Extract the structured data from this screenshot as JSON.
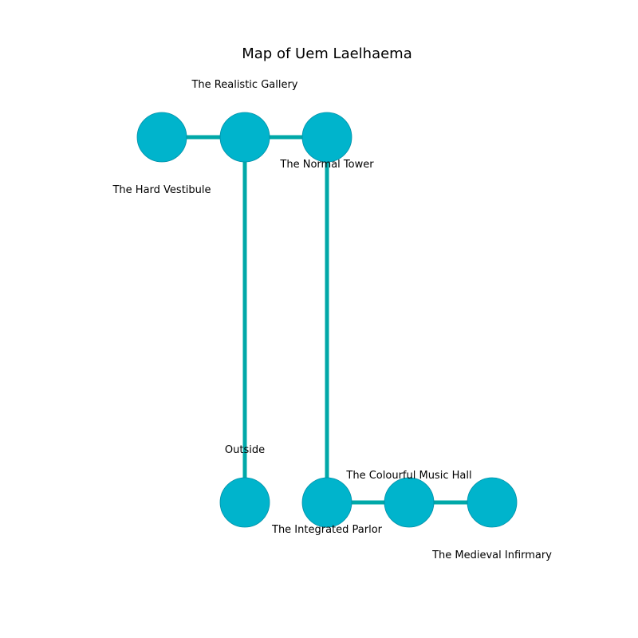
{
  "map": {
    "title": "Map of Uem Laelhaema",
    "colors": {
      "edge": "#00a8a8",
      "node_fill": "#00b4cc",
      "node_stroke": "#0090a8"
    },
    "rooms": [
      {
        "id": "hard-vestibule",
        "label": "The Hard Vestibule",
        "col": 0,
        "row": 0,
        "label_side": "below"
      },
      {
        "id": "realistic-gallery",
        "label": "The Realistic Gallery",
        "col": 1,
        "row": 0,
        "label_side": "above"
      },
      {
        "id": "normal-tower",
        "label": "The Normal Tower",
        "col": 2,
        "row": 0,
        "label_side": "below-near"
      },
      {
        "id": "outside",
        "label": "Outside",
        "col": 1,
        "row": 1,
        "label_side": "above"
      },
      {
        "id": "integrated-parlor",
        "label": "The Integrated Parlor",
        "col": 2,
        "row": 1,
        "label_side": "below-near"
      },
      {
        "id": "colourful-music-hall",
        "label": "The Colourful Music Hall",
        "col": 3,
        "row": 1,
        "label_side": "above-near"
      },
      {
        "id": "medieval-infirmary",
        "label": "The Medieval Infirmary",
        "col": 4,
        "row": 1,
        "label_side": "below"
      }
    ],
    "connections": [
      [
        "hard-vestibule",
        "realistic-gallery"
      ],
      [
        "realistic-gallery",
        "normal-tower"
      ],
      [
        "realistic-gallery",
        "outside"
      ],
      [
        "normal-tower",
        "integrated-parlor"
      ],
      [
        "integrated-parlor",
        "colourful-music-hall"
      ],
      [
        "colourful-music-hall",
        "medieval-infirmary"
      ]
    ]
  }
}
